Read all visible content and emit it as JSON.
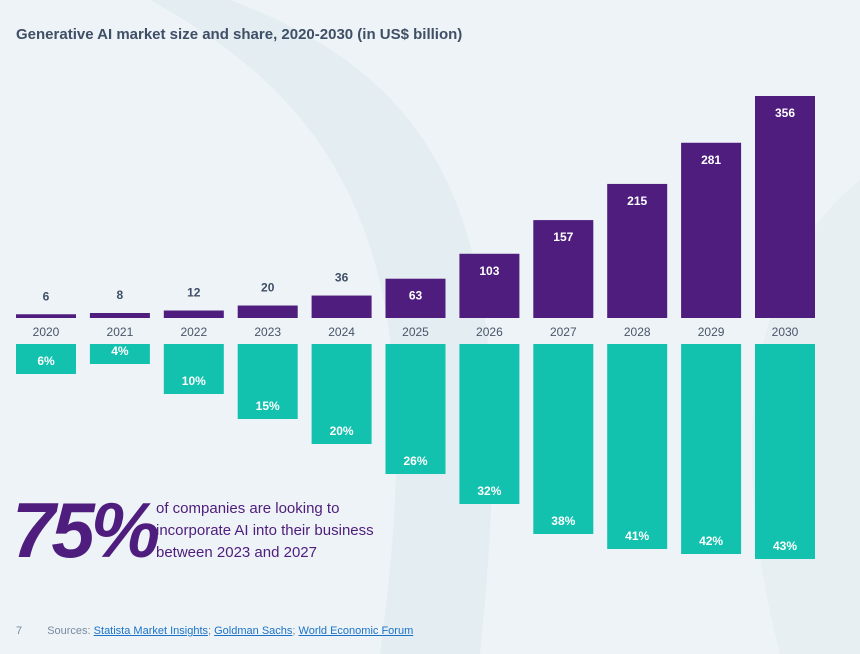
{
  "page": {
    "title": "Generative AI market size and share, 2020-2030 (in US$ billion)",
    "page_number": "7"
  },
  "chart_data": {
    "type": "bar",
    "title": "Generative AI market size and share, 2020-2030 (in US$ billion)",
    "categories": [
      "2020",
      "2021",
      "2022",
      "2023",
      "2024",
      "2025",
      "2026",
      "2027",
      "2028",
      "2029",
      "2030"
    ],
    "series": [
      {
        "name": "Market size (US$ billion)",
        "values": [
          6,
          8,
          12,
          20,
          36,
          63,
          103,
          157,
          215,
          281,
          356
        ],
        "labels": [
          "6",
          "8",
          "12",
          "20",
          "36",
          "63",
          "103",
          "157",
          "215",
          "281",
          "356"
        ],
        "color": "#4e1d7e"
      },
      {
        "name": "Share (%)",
        "values": [
          6,
          4,
          10,
          15,
          20,
          26,
          32,
          38,
          41,
          42,
          43
        ],
        "labels": [
          "6%",
          "4%",
          "10%",
          "15%",
          "20%",
          "26%",
          "32%",
          "38%",
          "41%",
          "42%",
          "43%"
        ],
        "color": "#12c2ae"
      }
    ],
    "ylim_size": [
      0,
      356
    ],
    "ylim_share": [
      0,
      43
    ],
    "xlabel": "",
    "ylabel": "",
    "grid": false
  },
  "stat": {
    "value": "75%",
    "text": "of companies are looking to incorporate AI into their business between 2023 and 2027"
  },
  "sources": {
    "prefix": "Sources:",
    "links": [
      "Statista Market Insights",
      "Goldman Sachs",
      "World Economic Forum"
    ],
    "separator": ";"
  },
  "colors": {
    "purple": "#4e1d7e",
    "teal": "#12c2ae",
    "background": "#edf3f6",
    "axis_label": "#4a5568",
    "link": "#1a73c9"
  }
}
